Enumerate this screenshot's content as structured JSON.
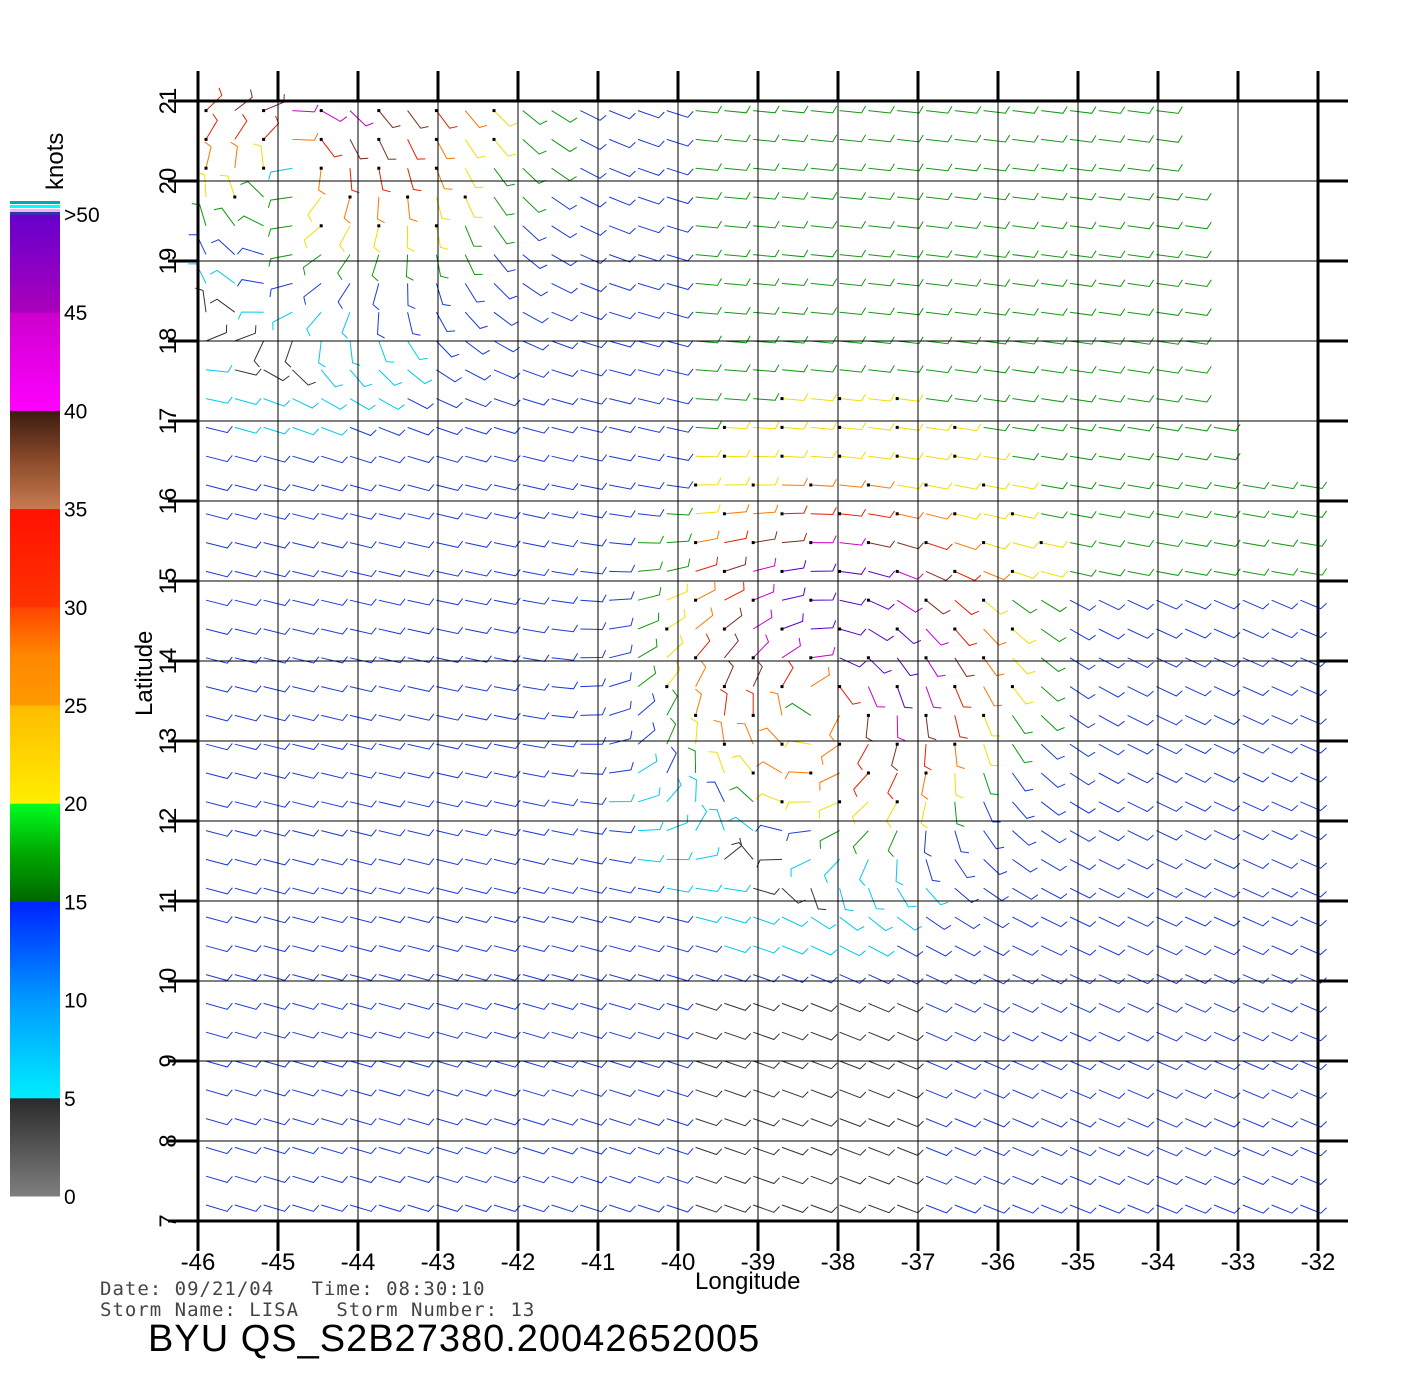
{
  "map": {
    "x_axis_label": "Longitude",
    "y_axis_label": "Latitude",
    "lon_ticks": [
      "-46",
      "-45",
      "-44",
      "-43",
      "-42",
      "-41",
      "-40",
      "-39",
      "-38",
      "-37",
      "-36",
      "-35",
      "-34",
      "-33",
      "-32"
    ],
    "lat_ticks": [
      "7",
      "8",
      "9",
      "10",
      "11",
      "12",
      "13",
      "14",
      "15",
      "16",
      "17",
      "18",
      "19",
      "20",
      "21"
    ],
    "lon_range": [
      -46,
      -32
    ],
    "lat_range": [
      7,
      21
    ]
  },
  "colorbar": {
    "title": "knots",
    "labels": [
      "0",
      "5",
      "10",
      "15",
      "20",
      "25",
      "30",
      "35",
      "40",
      "45",
      ">50"
    ],
    "colors": {
      "gray": "#7f7f7f",
      "cyan": "#00eeff",
      "blue": "#0022ff",
      "green": "#00aa00",
      "yellow": "#ffee00",
      "orange": "#ff8800",
      "red": "#ff1100",
      "brown": "#8a4a2a",
      "magenta": "#ff00ff",
      "purple": "#6600cc"
    }
  },
  "info": {
    "line1": "Date: 09/21/04   Time: 08:30:10",
    "line2": "Storm Name: LISA   Storm Number: 13",
    "file_id": "BYU  QS_S2B27380.20042652005"
  }
}
